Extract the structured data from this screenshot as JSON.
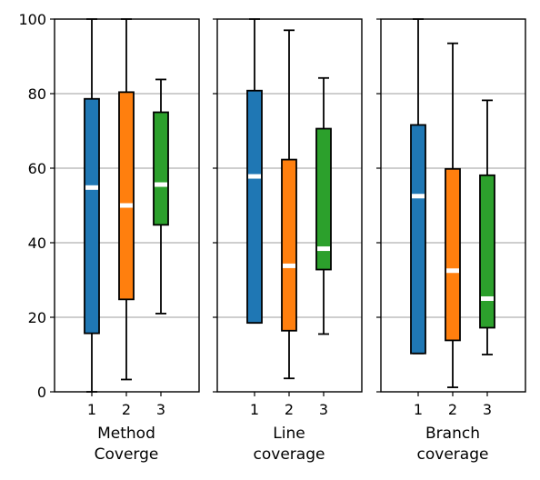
{
  "chart_data": {
    "type": "box",
    "y_ticks": [
      "0",
      "20",
      "40",
      "60",
      "80",
      "100"
    ],
    "ylim": [
      0,
      100
    ],
    "grid": "horizontal",
    "colors": [
      "#1f77b4",
      "#ff7f0e",
      "#2ca02c"
    ],
    "median_color": "#ffffff",
    "categories": [
      "1",
      "2",
      "3"
    ],
    "panels": [
      {
        "xlabel_lines": [
          "Method",
          "Coverge"
        ],
        "boxes": [
          {
            "category": "1",
            "whisker_low": 0,
            "q1": 15.7,
            "median": 54.8,
            "q3": 78.6,
            "whisker_high": 100
          },
          {
            "category": "2",
            "whisker_low": 3.3,
            "q1": 24.8,
            "median": 50.0,
            "q3": 80.4,
            "whisker_high": 100
          },
          {
            "category": "3",
            "whisker_low": 21.0,
            "q1": 44.8,
            "median": 55.6,
            "q3": 75.0,
            "whisker_high": 83.8
          }
        ]
      },
      {
        "xlabel_lines": [
          "Line",
          "coverage"
        ],
        "boxes": [
          {
            "category": "1",
            "whisker_low": 18.5,
            "q1": 18.5,
            "median": 57.8,
            "q3": 80.8,
            "whisker_high": 100
          },
          {
            "category": "2",
            "whisker_low": 3.6,
            "q1": 16.4,
            "median": 33.8,
            "q3": 62.3,
            "whisker_high": 97.0
          },
          {
            "category": "3",
            "whisker_low": 15.5,
            "q1": 32.8,
            "median": 38.4,
            "q3": 70.6,
            "whisker_high": 84.2
          }
        ]
      },
      {
        "xlabel_lines": [
          "Branch",
          "coverage"
        ],
        "boxes": [
          {
            "category": "1",
            "whisker_low": 10.3,
            "q1": 10.3,
            "median": 52.5,
            "q3": 71.6,
            "whisker_high": 100
          },
          {
            "category": "2",
            "whisker_low": 1.2,
            "q1": 13.8,
            "median": 32.5,
            "q3": 59.8,
            "whisker_high": 93.5
          },
          {
            "category": "3",
            "whisker_low": 10.0,
            "q1": 17.2,
            "median": 25.0,
            "q3": 58.1,
            "whisker_high": 78.2
          }
        ]
      }
    ]
  }
}
